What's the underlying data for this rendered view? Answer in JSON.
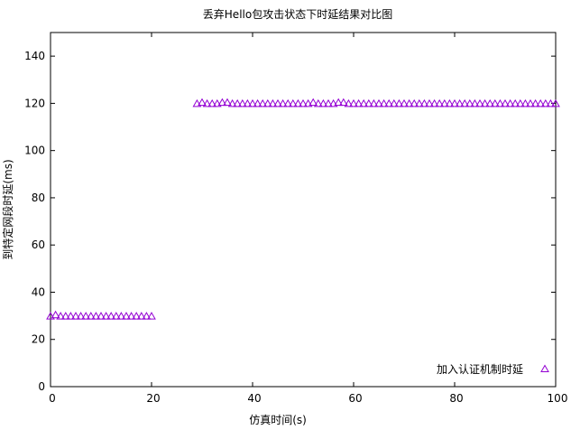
{
  "chart_data": {
    "type": "scatter",
    "title": "丢弃Hello包攻击状态下时延结果对比图",
    "xlabel": "仿真时间(s)",
    "ylabel": "到特定网段时延(ms)",
    "xlim": [
      0,
      100
    ],
    "ylim": [
      0,
      150
    ],
    "xticks": [
      0,
      20,
      40,
      60,
      80,
      100
    ],
    "yticks": [
      0,
      20,
      40,
      60,
      80,
      100,
      120,
      140
    ],
    "grid": false,
    "legend_position": "bottom-right",
    "series": [
      {
        "name": "加入认证机制时延",
        "marker": "triangle-up",
        "color": "#9400d3",
        "x": [
          0,
          1,
          2,
          3,
          4,
          5,
          6,
          7,
          8,
          9,
          10,
          11,
          12,
          13,
          14,
          15,
          16,
          17,
          18,
          19,
          20,
          29,
          30,
          31,
          32,
          33,
          34,
          35,
          36,
          37,
          38,
          39,
          40,
          41,
          42,
          43,
          44,
          45,
          46,
          47,
          48,
          49,
          50,
          51,
          52,
          53,
          54,
          55,
          56,
          57,
          58,
          59,
          60,
          61,
          62,
          63,
          64,
          65,
          66,
          67,
          68,
          69,
          70,
          71,
          72,
          73,
          74,
          75,
          76,
          77,
          78,
          79,
          80,
          81,
          82,
          83,
          84,
          85,
          86,
          87,
          88,
          89,
          90,
          91,
          92,
          93,
          94,
          95,
          96,
          97,
          98,
          99,
          100
        ],
        "y": [
          30,
          30.5,
          30,
          30,
          30,
          30,
          30,
          30,
          30,
          30,
          30,
          30,
          30,
          30,
          30,
          30,
          30,
          30,
          30,
          30,
          30,
          120,
          120.5,
          120,
          120,
          120,
          120.5,
          120.5,
          120,
          120,
          120,
          120,
          120,
          120,
          120,
          120,
          120,
          120,
          120,
          120,
          120,
          120,
          120,
          120,
          120.5,
          120,
          120,
          120,
          120,
          120.5,
          120.5,
          120,
          120,
          120,
          120,
          120,
          120,
          120,
          120,
          120,
          120,
          120,
          120,
          120,
          120,
          120,
          120,
          120,
          120,
          120,
          120,
          120,
          120,
          120,
          120,
          120,
          120,
          120,
          120,
          120,
          120,
          120,
          120,
          120,
          120,
          120,
          120,
          120,
          120,
          120,
          120,
          120,
          120
        ]
      }
    ]
  }
}
